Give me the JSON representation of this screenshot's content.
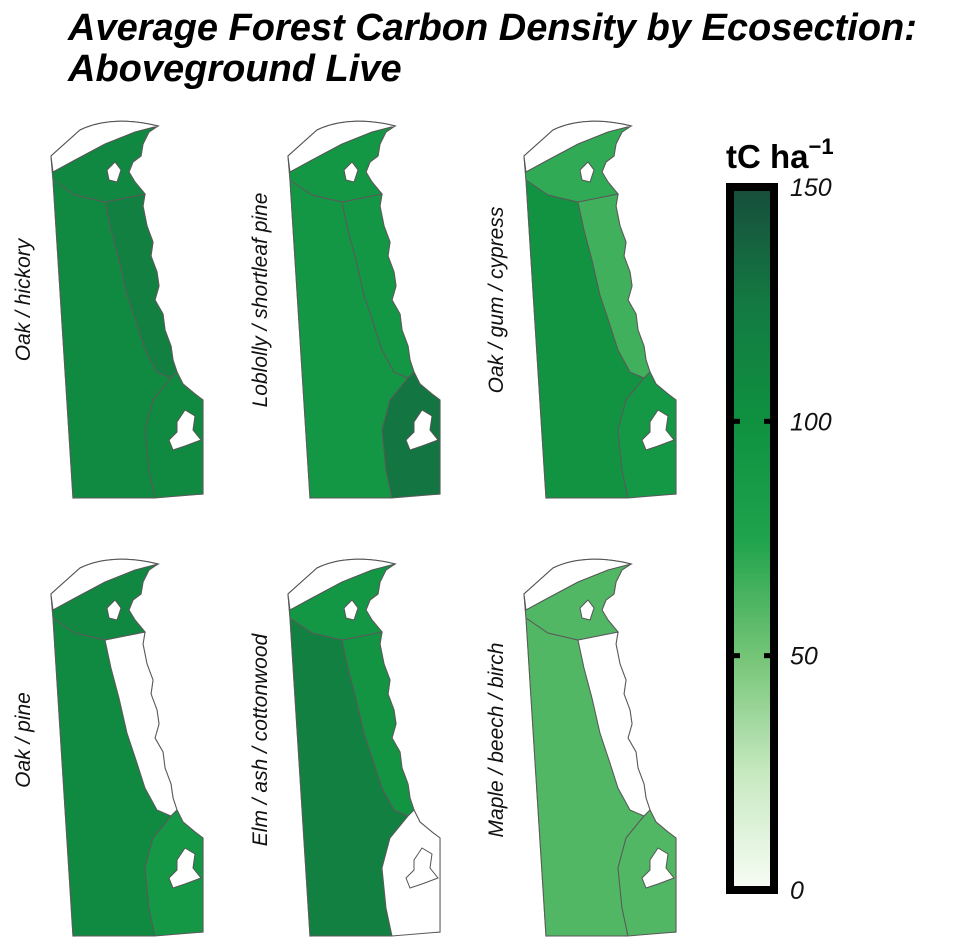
{
  "title_line1": "Average Forest Carbon Density by Ecosection:",
  "title_line2": "Aboveground Live",
  "colorbar": {
    "unit": "tC ha",
    "unit_exponent": "−1",
    "min": 0,
    "max": 150,
    "ticks": [
      "0",
      "50",
      "100",
      "150"
    ],
    "colors": [
      "#f7fcf5",
      "#c7e9c0",
      "#74c476",
      "#1fa34c",
      "#0f9140",
      "#137a42",
      "#174d3c"
    ]
  },
  "panels": [
    {
      "label": "Oak / hickory",
      "values": {
        "north": 110,
        "piedmont": 118,
        "coastal": 108,
        "south": 108
      }
    },
    {
      "label": "Loblolly / shortleaf pine",
      "values": {
        "north": 92,
        "piedmont": 92,
        "coastal": 92,
        "south": 128
      }
    },
    {
      "label": "Oak / gum / cypress",
      "values": {
        "north": 70,
        "piedmont": 65,
        "coastal": 97,
        "south": 90
      }
    },
    {
      "label": "Oak / pine",
      "values": {
        "north": 110,
        "piedmont": null,
        "coastal": 108,
        "south": 90
      }
    },
    {
      "label": "Elm / ash / cottonwood",
      "values": {
        "north": 92,
        "piedmont": 96,
        "coastal": 118,
        "south": null
      }
    },
    {
      "label": "Maple / beech / birch",
      "values": {
        "north": 60,
        "piedmont": null,
        "coastal": 60,
        "south": 60
      }
    }
  ]
}
